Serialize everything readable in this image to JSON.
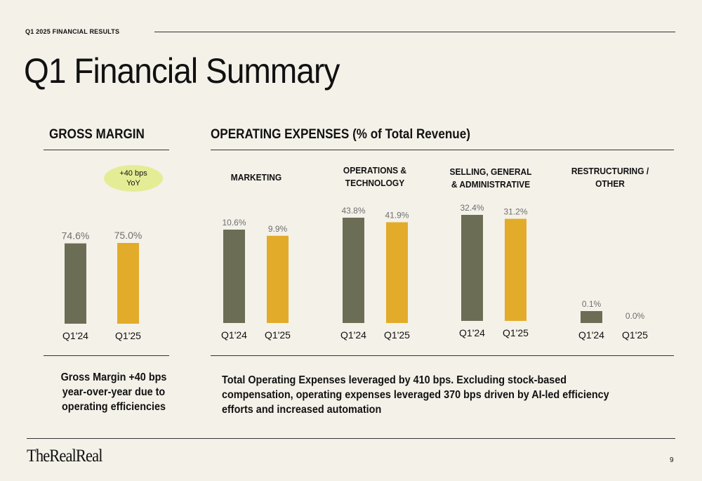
{
  "header": {
    "kicker": "Q1 2025 FINANCIAL RESULTS",
    "title": "Q1 Financial Summary"
  },
  "gross_margin": {
    "heading": "GROSS MARGIN",
    "badge_line1": "+40 bps",
    "badge_line2": "YoY",
    "note": "Gross Margin +40 bps year-over-year due to operating efficiencies",
    "badge_color": "#e4ed95"
  },
  "operating_expenses": {
    "heading": "OPERATING EXPENSES (% of Total Revenue)",
    "note": "Total Operating Expenses leveraged by 410 bps.  Excluding stock-based compensation, operating expenses leveraged 370 bps driven by AI-led efficiency efforts and increased automation"
  },
  "colors": {
    "q124": "#6b6e55",
    "q125": "#e2ac2a",
    "background": "#f4f1e9"
  },
  "chart_data": [
    {
      "type": "bar",
      "title": "GROSS MARGIN",
      "categories": [
        "Q1'24",
        "Q1'25"
      ],
      "values": [
        74.6,
        75.0
      ],
      "data_labels": [
        "74.6%",
        "75.0%"
      ]
    },
    {
      "type": "bar",
      "title": "MARKETING",
      "categories": [
        "Q1'24",
        "Q1'25"
      ],
      "values": [
        10.6,
        9.9
      ],
      "data_labels": [
        "10.6%",
        "9.9%"
      ]
    },
    {
      "type": "bar",
      "title": "OPERATIONS & TECHNOLOGY",
      "title_lines": [
        "OPERATIONS &",
        "TECHNOLOGY"
      ],
      "categories": [
        "Q1'24",
        "Q1'25"
      ],
      "values": [
        43.8,
        41.9
      ],
      "data_labels": [
        "43.8%",
        "41.9%"
      ]
    },
    {
      "type": "bar",
      "title": "SELLING, GENERAL & ADMINISTRATIVE",
      "title_lines": [
        "SELLING, GENERAL",
        "& ADMINISTRATIVE"
      ],
      "categories": [
        "Q1'24",
        "Q1'25"
      ],
      "values": [
        32.4,
        31.2
      ],
      "data_labels": [
        "32.4%",
        "31.2%"
      ]
    },
    {
      "type": "bar",
      "title": "RESTRUCTURING / OTHER",
      "title_lines": [
        "RESTRUCTURING /",
        "OTHER"
      ],
      "categories": [
        "Q1'24",
        "Q1'25"
      ],
      "values": [
        0.1,
        0.0
      ],
      "data_labels": [
        "0.1%",
        "0.0%"
      ]
    }
  ],
  "footer": {
    "logo": "TheRealReal",
    "page": "9"
  }
}
